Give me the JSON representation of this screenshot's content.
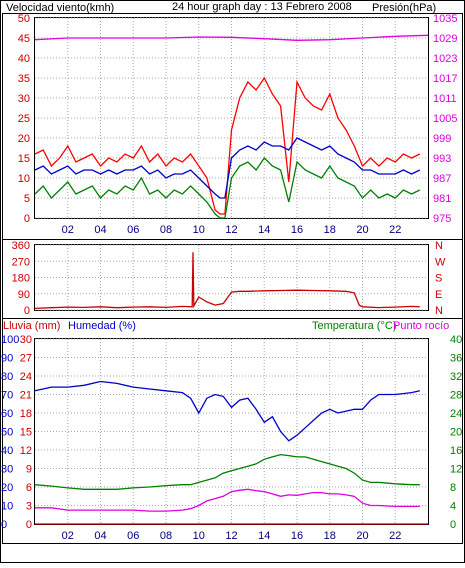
{
  "header": {
    "left_title": "Velocidad viento(kmh)",
    "center_title": "24 hour graph day : 13 Febrero 2008",
    "right_title": "Presión(hPa)"
  },
  "colors": {
    "wind_gust": "#ff0000",
    "wind_avg": "#008000",
    "pressure": "#e000e0",
    "direction": "#cc0000",
    "humidity": "#0000cc",
    "temperature": "#008000",
    "dewpoint": "#e000e0",
    "rain": "#cc0000",
    "grid": "#aaaaaa",
    "frame": "#000000"
  },
  "x_ticks": [
    "02",
    "04",
    "06",
    "08",
    "10",
    "12",
    "14",
    "16",
    "18",
    "20",
    "22"
  ],
  "chart_data": [
    {
      "type": "line",
      "name": "wind_pressure",
      "title": "24 hour graph day : 13 Febrero 2008",
      "left_axis_label": "Velocidad viento(kmh)",
      "right_axis_label": "Presión(hPa)",
      "left_ticks": [
        "0",
        "5",
        "10",
        "15",
        "20",
        "25",
        "30",
        "35",
        "40",
        "45",
        "50"
      ],
      "right_ticks": [
        "975",
        "981",
        "987",
        "993",
        "999",
        "1005",
        "1011",
        "1017",
        "1023",
        "1029",
        "1035"
      ],
      "ylim_left": [
        0,
        50
      ],
      "ylim_right": [
        975,
        1035
      ],
      "xlim_hours": [
        0,
        24
      ],
      "grid": true,
      "series": [
        {
          "key": "gust",
          "color_key": "wind_gust",
          "axis": "left",
          "x": [
            0,
            0.5,
            1,
            1.5,
            2,
            2.5,
            3,
            3.5,
            4,
            4.5,
            5,
            5.5,
            6,
            6.5,
            7,
            7.5,
            8,
            8.5,
            9,
            9.5,
            10,
            10.5,
            11,
            11.3,
            11.6,
            12,
            12.5,
            13,
            13.5,
            14,
            14.5,
            15,
            15.5,
            16,
            16.5,
            17,
            17.5,
            18,
            18.5,
            19,
            19.5,
            20,
            20.5,
            21,
            21.5,
            22,
            22.5,
            23,
            23.5
          ],
          "y": [
            16,
            17,
            13,
            15,
            18,
            14,
            15,
            16,
            13,
            15,
            14,
            16,
            15,
            18,
            14,
            16,
            13,
            15,
            14,
            16,
            13,
            10,
            2,
            1,
            1,
            22,
            30,
            34,
            32,
            35,
            31,
            28,
            9,
            34,
            30,
            28,
            27,
            31,
            25,
            22,
            18,
            13,
            15,
            13,
            15,
            14,
            16,
            15,
            16
          ]
        },
        {
          "key": "avg",
          "color_key": "wind_avg",
          "axis": "left",
          "x": [
            0,
            0.5,
            1,
            1.5,
            2,
            2.5,
            3,
            3.5,
            4,
            4.5,
            5,
            5.5,
            6,
            6.5,
            7,
            7.5,
            8,
            8.5,
            9,
            9.5,
            10,
            10.5,
            11,
            11.3,
            11.6,
            12,
            12.5,
            13,
            13.5,
            14,
            14.5,
            15,
            15.5,
            16,
            16.5,
            17,
            17.5,
            18,
            18.5,
            19,
            19.5,
            20,
            20.5,
            21,
            21.5,
            22,
            22.5,
            23,
            23.5
          ],
          "y": [
            6,
            8,
            5,
            7,
            9,
            6,
            7,
            8,
            5,
            7,
            6,
            8,
            7,
            10,
            6,
            7,
            5,
            7,
            6,
            8,
            6,
            4,
            1,
            0,
            0,
            10,
            13,
            14,
            12,
            15,
            13,
            12,
            4,
            14,
            12,
            11,
            10,
            13,
            10,
            9,
            8,
            5,
            7,
            5,
            6,
            5,
            7,
            6,
            7
          ]
        },
        {
          "key": "avg_speed",
          "color_key": "humidity",
          "axis": "left",
          "x": [
            0,
            0.5,
            1,
            1.5,
            2,
            2.5,
            3,
            3.5,
            4,
            4.5,
            5,
            5.5,
            6,
            6.5,
            7,
            7.5,
            8,
            8.5,
            9,
            9.5,
            10,
            10.5,
            11,
            11.3,
            11.6,
            12,
            12.5,
            13,
            13.5,
            14,
            14.5,
            15,
            15.5,
            16,
            16.5,
            17,
            17.5,
            18,
            18.5,
            19,
            19.5,
            20,
            20.5,
            21,
            21.5,
            22,
            22.5,
            23,
            23.5
          ],
          "y": [
            12,
            13,
            11,
            12,
            13,
            11,
            12,
            12,
            11,
            12,
            11,
            12,
            12,
            13,
            11,
            12,
            10,
            11,
            11,
            12,
            10,
            8,
            6,
            5,
            5,
            15,
            17,
            18,
            17,
            19,
            18,
            18,
            17,
            20,
            19,
            18,
            17,
            18,
            16,
            15,
            14,
            12,
            12,
            11,
            11,
            11,
            12,
            11,
            12
          ]
        },
        {
          "key": "pressure",
          "color_key": "pressure",
          "axis": "right",
          "x": [
            0,
            2,
            4,
            6,
            8,
            10,
            12,
            14,
            16,
            18,
            20,
            22,
            24
          ],
          "y": [
            1028.5,
            1029,
            1029,
            1029,
            1029,
            1029.3,
            1029.2,
            1028.8,
            1028.3,
            1028.5,
            1029,
            1029.5,
            1029.8
          ]
        }
      ]
    },
    {
      "type": "line",
      "name": "wind_direction",
      "left_ticks": [
        "0",
        "90",
        "180",
        "270",
        "360"
      ],
      "right_labels": [
        "N",
        "W",
        "S",
        "E",
        "N"
      ],
      "ylim": [
        0,
        400
      ],
      "xlim_hours": [
        0,
        24
      ],
      "series": [
        {
          "key": "direction",
          "color_key": "direction",
          "x": [
            0,
            1,
            2,
            3,
            4,
            5,
            6,
            7,
            8,
            9,
            9.6,
            9.65,
            9.7,
            10,
            10.5,
            11,
            11.5,
            12,
            12.5,
            13,
            14,
            15,
            16,
            17,
            18,
            19,
            19.5,
            19.8,
            20,
            21,
            22,
            23,
            23.5
          ],
          "y": [
            10,
            14,
            18,
            16,
            20,
            14,
            18,
            20,
            16,
            22,
            20,
            355,
            25,
            80,
            50,
            30,
            40,
            110,
            115,
            115,
            118,
            120,
            122,
            120,
            118,
            115,
            105,
            30,
            20,
            15,
            18,
            22,
            20
          ]
        }
      ]
    },
    {
      "type": "line",
      "name": "rain_humidity_temperature",
      "left_axis_label": "Lluvia (mm)",
      "left_axis_label2": "Humedad (%)",
      "right_axis_label": "Temperatura (°C)",
      "right_axis_label2": "Punto rocío",
      "left_ticks_outer": [
        "0",
        "10",
        "20",
        "30",
        "40",
        "50",
        "60",
        "70",
        "80",
        "90",
        "100"
      ],
      "left_ticks_inner": [
        "0",
        "3",
        "6",
        "9",
        "12",
        "15",
        "18",
        "21",
        "24",
        "27",
        "30"
      ],
      "right_ticks": [
        "0",
        "4",
        "8",
        "12",
        "16",
        "20",
        "24",
        "28",
        "32",
        "36",
        "40"
      ],
      "ylim_humidity": [
        0,
        100
      ],
      "ylim_temperature": [
        0,
        40
      ],
      "xlim_hours": [
        0,
        24
      ],
      "series": [
        {
          "key": "humidity",
          "color_key": "humidity",
          "axis": "humidity",
          "x": [
            0,
            1,
            2,
            3,
            4,
            5,
            6,
            7,
            8,
            9,
            9.5,
            10,
            10.5,
            11,
            11.5,
            12,
            12.5,
            13,
            13.5,
            14,
            14.5,
            15,
            15.5,
            16,
            16.5,
            17,
            17.5,
            18,
            18.5,
            19,
            19.5,
            20,
            20.5,
            21,
            22,
            23,
            23.5
          ],
          "y": [
            72,
            74,
            74,
            75,
            77,
            76,
            74,
            73,
            72,
            71,
            68,
            60,
            68,
            70,
            69,
            63,
            67,
            68,
            62,
            55,
            58,
            50,
            45,
            48,
            52,
            56,
            60,
            62,
            60,
            61,
            62,
            62,
            67,
            70,
            70,
            71,
            72
          ]
        },
        {
          "key": "temperature",
          "color_key": "temperature",
          "axis": "temperature",
          "x": [
            0,
            1,
            2,
            3,
            4,
            5,
            6,
            7,
            8,
            9,
            9.5,
            10,
            10.5,
            11,
            11.5,
            12,
            12.5,
            13,
            13.5,
            14,
            14.5,
            15,
            15.5,
            16,
            16.5,
            17,
            17.5,
            18,
            18.5,
            19,
            19.5,
            20,
            20.5,
            21,
            22,
            23,
            23.5
          ],
          "y": [
            8.5,
            8.2,
            7.8,
            7.5,
            7.5,
            7.5,
            7.8,
            8,
            8.3,
            8.5,
            8.5,
            9,
            9.5,
            10,
            11,
            11.5,
            12,
            12.5,
            13,
            14,
            14.5,
            15,
            14.8,
            14.5,
            14.5,
            14,
            13.5,
            13,
            12.5,
            12,
            11,
            9.5,
            9,
            9,
            8.7,
            8.5,
            8.5
          ]
        },
        {
          "key": "dewpoint",
          "color_key": "dewpoint",
          "axis": "temperature",
          "x": [
            0,
            1,
            2,
            3,
            4,
            5,
            6,
            7,
            8,
            9,
            9.5,
            10,
            10.5,
            11,
            11.5,
            12,
            12.5,
            13,
            13.5,
            14,
            14.5,
            15,
            15.5,
            16,
            16.5,
            17,
            17.5,
            18,
            18.5,
            19,
            19.5,
            20,
            20.5,
            21,
            22,
            23,
            23.5
          ],
          "y": [
            3.5,
            3.5,
            3,
            3,
            3,
            3,
            3,
            2.8,
            2.8,
            3,
            3.3,
            4,
            5,
            5.5,
            6,
            7,
            7.3,
            7.5,
            7.2,
            7,
            6.5,
            6,
            6.3,
            6.2,
            6.5,
            6.8,
            6.8,
            6.5,
            6.5,
            6.3,
            6,
            4.5,
            4,
            4,
            3.8,
            3.8,
            3.8
          ]
        },
        {
          "key": "rain",
          "color_key": "rain",
          "axis": "humidity",
          "x": [
            0,
            24
          ],
          "y": [
            0,
            0
          ]
        }
      ]
    }
  ]
}
